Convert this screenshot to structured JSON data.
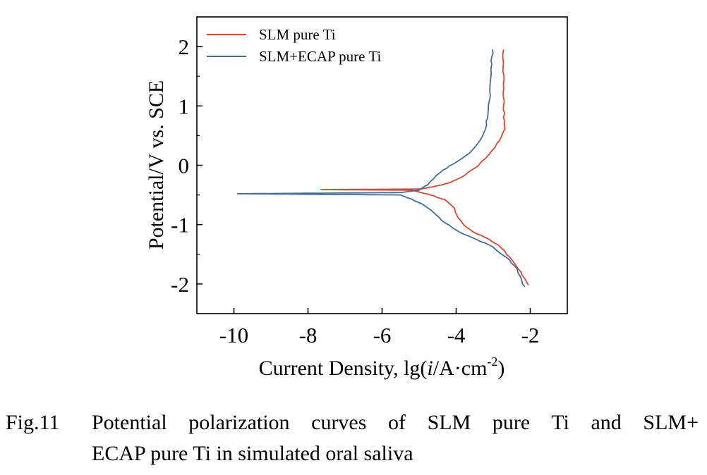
{
  "chart_data": {
    "type": "line",
    "xlabel": "Current Density, lg(i/A·cm⁻²)",
    "xlabel_parts": {
      "pre": "Current Density, lg(",
      "italic": "i",
      "mid": "/A·cm",
      "sup": "-2",
      "post": ")"
    },
    "ylabel": "Potential/V vs. SCE",
    "xlim": [
      -11,
      -1
    ],
    "ylim": [
      -2.5,
      2.5
    ],
    "xticks": [
      -10,
      -8,
      -6,
      -4,
      -2
    ],
    "xtick_labels": [
      "-10",
      "-8",
      "-6",
      "-4",
      "-2"
    ],
    "yticks": [
      -2,
      -1,
      0,
      1,
      2
    ],
    "ytick_labels": [
      "-2",
      "-1",
      "0",
      "1",
      "2"
    ],
    "legend_position": "top-left",
    "series": [
      {
        "name": "SLM pure Ti",
        "color": "#e8432a",
        "x": [
          -2.05,
          -2.25,
          -2.55,
          -2.85,
          -3.2,
          -3.55,
          -3.8,
          -3.95,
          -4.05,
          -4.3,
          -4.7,
          -5.0,
          -5.2,
          -7.65,
          -4.95,
          -4.6,
          -4.2,
          -3.85,
          -3.5,
          -3.2,
          -2.95,
          -2.78,
          -2.68,
          -2.7,
          -2.72,
          -2.72
        ],
        "y": [
          -2.02,
          -1.8,
          -1.55,
          -1.35,
          -1.22,
          -1.12,
          -1.0,
          -0.88,
          -0.72,
          -0.58,
          -0.5,
          -0.45,
          -0.42,
          -0.41,
          -0.4,
          -0.36,
          -0.3,
          -0.2,
          -0.05,
          0.12,
          0.3,
          0.48,
          0.62,
          0.75,
          1.0,
          1.95
        ]
      },
      {
        "name": "SLM+ECAP pure Ti",
        "color": "#3d6da6",
        "x": [
          -2.15,
          -2.35,
          -2.65,
          -3.0,
          -3.45,
          -3.9,
          -4.3,
          -4.6,
          -4.9,
          -5.2,
          -5.5,
          -9.9,
          -5.5,
          -5.0,
          -4.75,
          -4.55,
          -4.35,
          -4.0,
          -3.65,
          -3.4,
          -3.25,
          -3.15,
          -3.1,
          -3.08,
          -3.04,
          -3.02
        ],
        "y": [
          -2.05,
          -1.75,
          -1.55,
          -1.38,
          -1.25,
          -1.13,
          -0.97,
          -0.8,
          -0.66,
          -0.57,
          -0.5,
          -0.48,
          -0.46,
          -0.42,
          -0.32,
          -0.18,
          -0.08,
          0.05,
          0.2,
          0.38,
          0.55,
          0.8,
          1.1,
          1.4,
          1.7,
          1.95
        ]
      }
    ]
  },
  "caption": {
    "number": "Fig.11",
    "line1": "Potential polarization curves of SLM pure Ti and SLM+",
    "line2": "ECAP pure Ti in simulated oral saliva"
  }
}
